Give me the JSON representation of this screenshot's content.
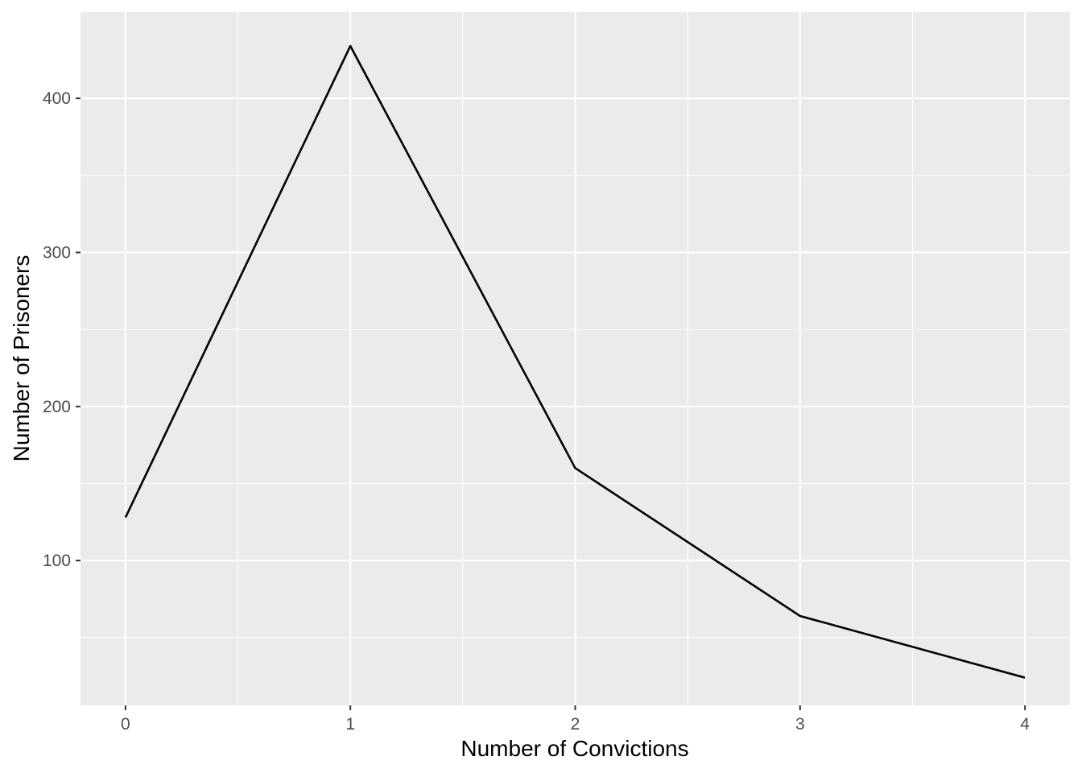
{
  "chart_data": {
    "type": "line",
    "x": [
      0,
      1,
      2,
      3,
      4
    ],
    "y": [
      128,
      434,
      160,
      64,
      24
    ],
    "xlabel": "Number of Convictions",
    "ylabel": "Number of Prisoners",
    "xlim": [
      -0.2,
      4.2
    ],
    "ylim": [
      6,
      456
    ],
    "x_ticks": [
      0,
      1,
      2,
      3,
      4
    ],
    "x_tick_labels": [
      "0",
      "1",
      "2",
      "3",
      "4"
    ],
    "y_ticks": [
      100,
      200,
      300,
      400
    ],
    "y_tick_labels": [
      "100",
      "200",
      "300",
      "400"
    ],
    "x_minor_ticks": [
      0.5,
      1.5,
      2.5,
      3.5
    ],
    "y_minor_ticks": [
      50,
      150,
      250,
      350
    ],
    "grid": true,
    "legend": "none",
    "colors": {
      "panel_background": "#ebebeb",
      "grid_major": "#ffffff",
      "grid_minor": "#ffffff",
      "line": "#000000",
      "tick_text": "#4d4d4d",
      "tick_mark": "#333333"
    }
  }
}
